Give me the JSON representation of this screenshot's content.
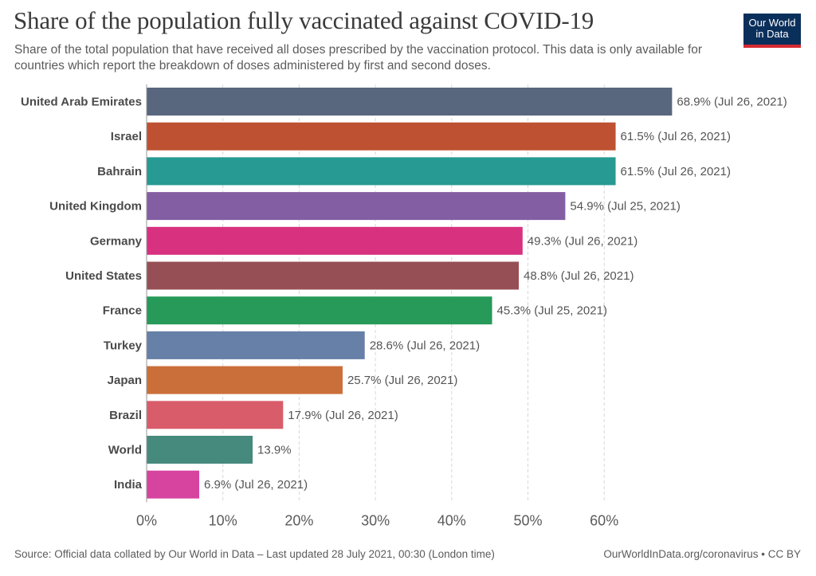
{
  "brand": {
    "line1": "Our World",
    "line2": "in Data",
    "bg": "#0b2f5b",
    "accent": "#d42b32"
  },
  "footer": {
    "source": "Source: Official data collated by Our World in Data – Last updated 28 July 2021, 00:30 (London time)",
    "credit": "OurWorldInData.org/coronavirus • CC BY"
  },
  "chart_data": {
    "type": "bar",
    "orientation": "horizontal",
    "title": "Share of the population fully vaccinated against COVID-19",
    "subtitle": "Share of the total population that have received all doses prescribed by the vaccination protocol. This data is only available for countries which report the breakdown of doses administered by first and second doses.",
    "categories": [
      "United Arab Emirates",
      "Israel",
      "Bahrain",
      "United Kingdom",
      "Germany",
      "United States",
      "France",
      "Turkey",
      "Japan",
      "Brazil",
      "World",
      "India"
    ],
    "values": [
      68.9,
      61.5,
      61.5,
      54.9,
      49.3,
      48.8,
      45.3,
      28.6,
      25.7,
      17.9,
      13.9,
      6.9
    ],
    "value_labels": [
      "68.9% (Jul 26, 2021)",
      "61.5% (Jul 26, 2021)",
      "61.5% (Jul 26, 2021)",
      "54.9% (Jul 25, 2021)",
      "49.3% (Jul 26, 2021)",
      "48.8% (Jul 26, 2021)",
      "45.3% (Jul 25, 2021)",
      "28.6% (Jul 26, 2021)",
      "25.7% (Jul 26, 2021)",
      "17.9% (Jul 26, 2021)",
      "13.9%",
      "6.9% (Jul 26, 2021)"
    ],
    "colors": [
      "#58667e",
      "#be5131",
      "#279a93",
      "#845ea3",
      "#d73180",
      "#974f56",
      "#279a59",
      "#6680a8",
      "#cb6f3a",
      "#d95c6a",
      "#468a7e",
      "#d6449f"
    ],
    "xticks": [
      0,
      10,
      20,
      30,
      40,
      50,
      60
    ],
    "xtick_labels": [
      "0%",
      "10%",
      "20%",
      "30%",
      "40%",
      "50%",
      "60%"
    ],
    "xlim": [
      0,
      70
    ],
    "grid": true
  }
}
